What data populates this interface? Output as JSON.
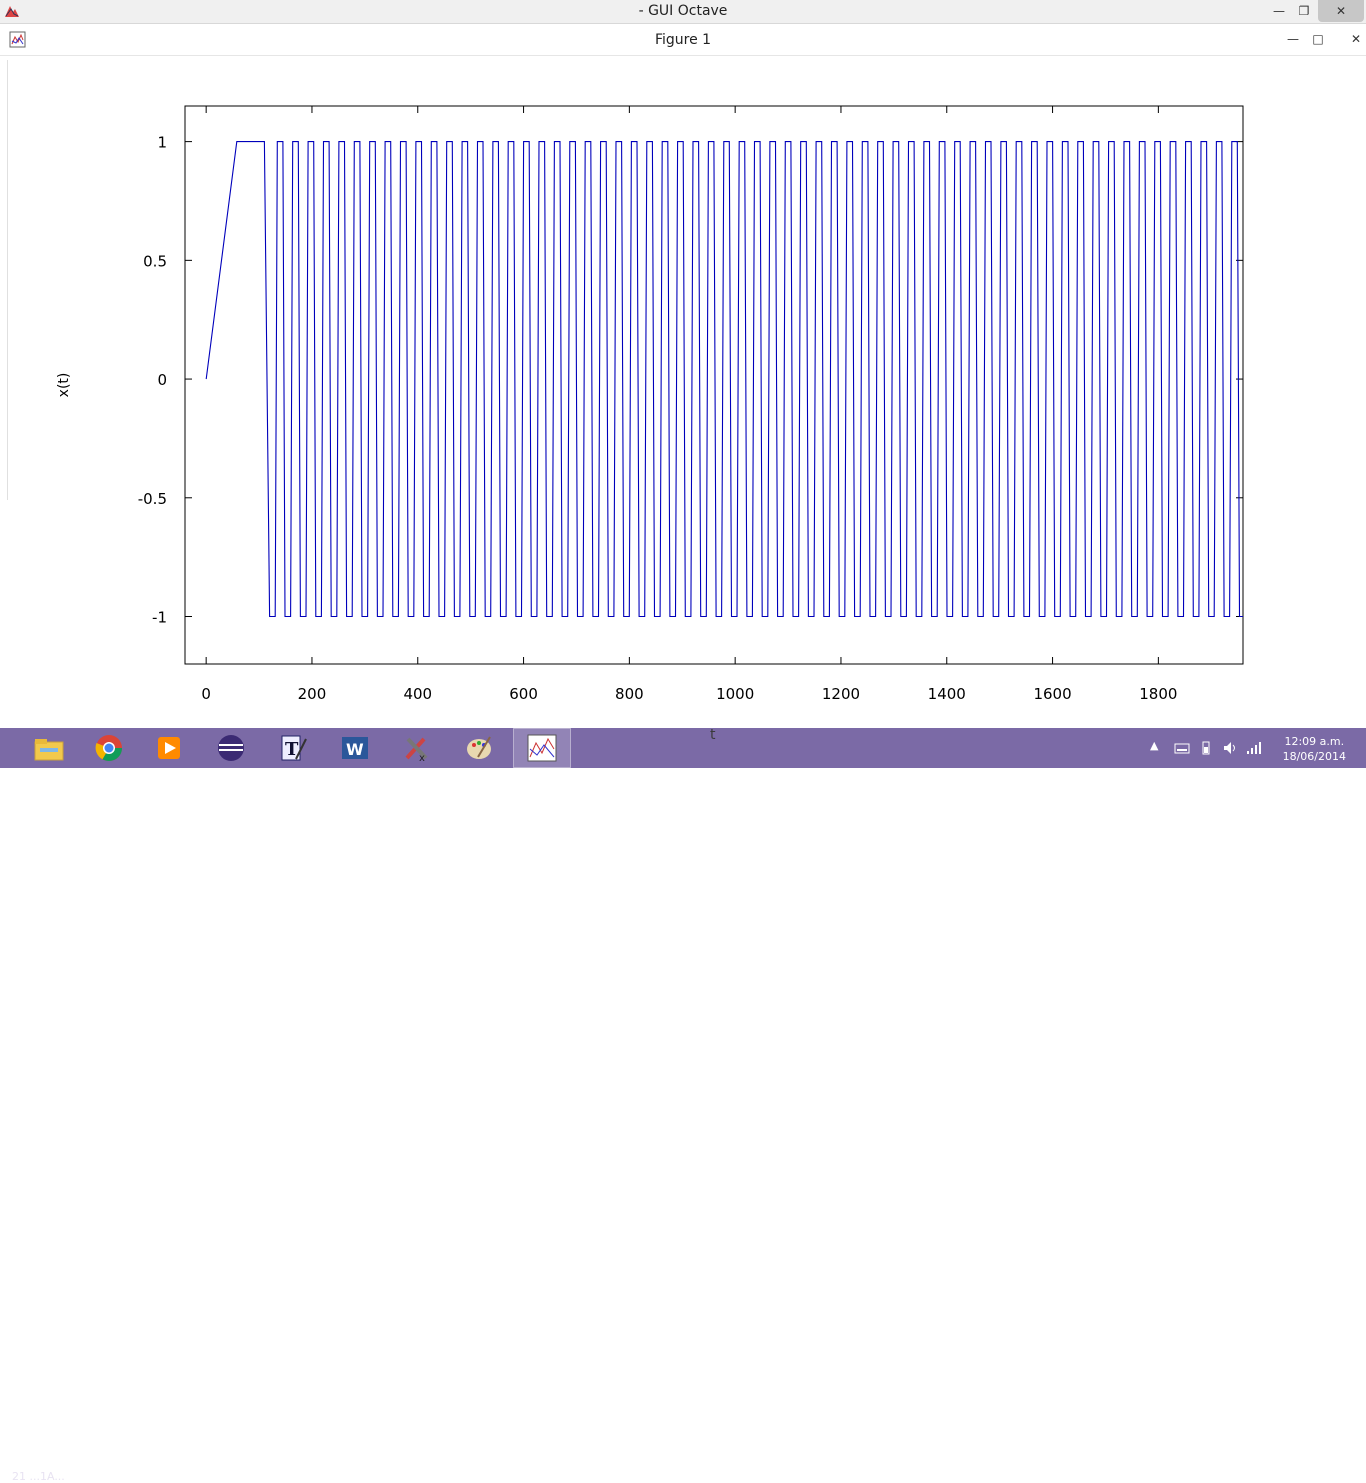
{
  "window": {
    "title": "- GUI Octave",
    "figure_title": "Figure 1"
  },
  "chart_data": {
    "type": "line",
    "xlabel": "t",
    "ylabel": "x(t)",
    "xlim": [
      -40,
      1960
    ],
    "ylim": [
      -1.2,
      1.15
    ],
    "xticks": [
      0,
      200,
      400,
      600,
      800,
      1000,
      1200,
      1400,
      1600,
      1800
    ],
    "yticks": [
      -1,
      -0.5,
      0,
      0.5,
      1
    ],
    "xtick_labels": [
      "0",
      "200",
      "400",
      "600",
      "800",
      "1000",
      "1200",
      "1400",
      "1600",
      "1800"
    ],
    "ytick_labels": [
      "-1",
      "-0.5",
      "0",
      "0.5",
      "1"
    ],
    "grid": false,
    "color": "#0000bb",
    "series": [
      {
        "x": [
          0,
          58,
          110,
          120
        ],
        "y": [
          0,
          1,
          1,
          -1
        ],
        "then": "square wave between 1 and -1 from t=120 to t=1960 with period ~29 (about 63 cycles)",
        "square_wave": {
          "start": 120,
          "end": 1960,
          "period": 29.1,
          "high": 1,
          "low": -1,
          "edge_width": 4
        }
      }
    ]
  },
  "taskbar": {
    "time": "12:09 a.m.",
    "date": "18/06/2014",
    "ghost_text": "21  ...1A..."
  }
}
